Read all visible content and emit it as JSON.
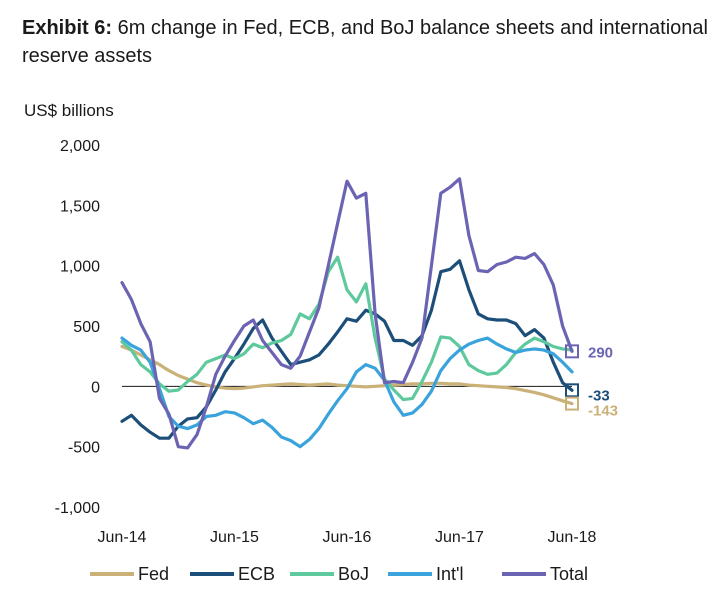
{
  "header": {
    "exhibit_label": "Exhibit 6:",
    "title": "6m change in Fed, ECB, and BoJ balance sheets and international reserve assets"
  },
  "chart_data": {
    "type": "line",
    "ylabel": "US$ billions",
    "ylim": [
      -1000,
      2000
    ],
    "y_ticks": [
      "2,000",
      "1,500",
      "1,000",
      "500",
      "0",
      "-500",
      "-1,000"
    ],
    "y_tick_values": [
      2000,
      1500,
      1000,
      500,
      0,
      -500,
      -1000
    ],
    "x_tick_labels": [
      "Jun-14",
      "Jun-15",
      "Jun-16",
      "Jun-17",
      "Jun-18"
    ],
    "x_tick_values": [
      0,
      12,
      24,
      36,
      48
    ],
    "xlim": [
      0,
      48
    ],
    "grid": false,
    "legend_position": "bottom",
    "series": [
      {
        "name": "Fed",
        "color": "#c9b178",
        "values": [
          [
            0,
            330
          ],
          [
            1,
            300
          ],
          [
            2,
            260
          ],
          [
            3,
            220
          ],
          [
            4,
            180
          ],
          [
            5,
            130
          ],
          [
            6,
            90
          ],
          [
            7,
            60
          ],
          [
            8,
            30
          ],
          [
            9,
            10
          ],
          [
            10,
            -5
          ],
          [
            11,
            -15
          ],
          [
            12,
            -20
          ],
          [
            13,
            -15
          ],
          [
            14,
            -5
          ],
          [
            15,
            5
          ],
          [
            16,
            10
          ],
          [
            17,
            15
          ],
          [
            18,
            20
          ],
          [
            19,
            15
          ],
          [
            20,
            10
          ],
          [
            21,
            15
          ],
          [
            22,
            20
          ],
          [
            23,
            10
          ],
          [
            24,
            5
          ],
          [
            25,
            0
          ],
          [
            26,
            -5
          ],
          [
            27,
            0
          ],
          [
            28,
            5
          ],
          [
            29,
            10
          ],
          [
            30,
            15
          ],
          [
            31,
            20
          ],
          [
            32,
            20
          ],
          [
            33,
            25
          ],
          [
            34,
            25
          ],
          [
            35,
            20
          ],
          [
            36,
            20
          ],
          [
            37,
            10
          ],
          [
            38,
            5
          ],
          [
            39,
            0
          ],
          [
            40,
            -5
          ],
          [
            41,
            -10
          ],
          [
            42,
            -20
          ],
          [
            43,
            -35
          ],
          [
            44,
            -50
          ],
          [
            45,
            -70
          ],
          [
            46,
            -95
          ],
          [
            47,
            -120
          ],
          [
            48,
            -143
          ]
        ]
      },
      {
        "name": "ECB",
        "color": "#1c4e7a",
        "values": [
          [
            0,
            -290
          ],
          [
            1,
            -240
          ],
          [
            2,
            -320
          ],
          [
            3,
            -380
          ],
          [
            4,
            -430
          ],
          [
            5,
            -430
          ],
          [
            6,
            -330
          ],
          [
            7,
            -270
          ],
          [
            8,
            -260
          ],
          [
            9,
            -170
          ],
          [
            10,
            -30
          ],
          [
            11,
            120
          ],
          [
            12,
            230
          ],
          [
            13,
            350
          ],
          [
            14,
            480
          ],
          [
            15,
            550
          ],
          [
            16,
            400
          ],
          [
            17,
            290
          ],
          [
            18,
            180
          ],
          [
            19,
            200
          ],
          [
            20,
            220
          ],
          [
            21,
            260
          ],
          [
            22,
            350
          ],
          [
            23,
            450
          ],
          [
            24,
            560
          ],
          [
            25,
            540
          ],
          [
            26,
            630
          ],
          [
            27,
            600
          ],
          [
            28,
            540
          ],
          [
            29,
            380
          ],
          [
            30,
            380
          ],
          [
            31,
            340
          ],
          [
            32,
            420
          ],
          [
            33,
            630
          ],
          [
            34,
            950
          ],
          [
            35,
            970
          ],
          [
            36,
            1040
          ],
          [
            37,
            800
          ],
          [
            38,
            600
          ],
          [
            39,
            560
          ],
          [
            40,
            550
          ],
          [
            41,
            550
          ],
          [
            42,
            520
          ],
          [
            43,
            420
          ],
          [
            44,
            470
          ],
          [
            45,
            400
          ],
          [
            46,
            200
          ],
          [
            47,
            30
          ],
          [
            48,
            -33
          ]
        ]
      },
      {
        "name": "BoJ",
        "color": "#5ec99d",
        "values": [
          [
            0,
            370
          ],
          [
            1,
            300
          ],
          [
            2,
            180
          ],
          [
            3,
            120
          ],
          [
            4,
            20
          ],
          [
            5,
            -40
          ],
          [
            6,
            -30
          ],
          [
            7,
            40
          ],
          [
            8,
            100
          ],
          [
            9,
            200
          ],
          [
            10,
            230
          ],
          [
            11,
            260
          ],
          [
            12,
            230
          ],
          [
            13,
            270
          ],
          [
            14,
            350
          ],
          [
            15,
            320
          ],
          [
            16,
            360
          ],
          [
            17,
            380
          ],
          [
            18,
            430
          ],
          [
            19,
            600
          ],
          [
            20,
            560
          ],
          [
            21,
            680
          ],
          [
            22,
            950
          ],
          [
            23,
            1070
          ],
          [
            24,
            800
          ],
          [
            25,
            700
          ],
          [
            26,
            850
          ],
          [
            27,
            400
          ],
          [
            28,
            60
          ],
          [
            29,
            -30
          ],
          [
            30,
            -110
          ],
          [
            31,
            -100
          ],
          [
            32,
            40
          ],
          [
            33,
            200
          ],
          [
            34,
            410
          ],
          [
            35,
            400
          ],
          [
            36,
            330
          ],
          [
            37,
            180
          ],
          [
            38,
            130
          ],
          [
            39,
            100
          ],
          [
            40,
            110
          ],
          [
            41,
            180
          ],
          [
            42,
            280
          ],
          [
            43,
            350
          ],
          [
            44,
            400
          ],
          [
            45,
            370
          ],
          [
            46,
            330
          ],
          [
            47,
            310
          ],
          [
            48,
            300
          ]
        ]
      },
      {
        "name": "Int'l",
        "color": "#3aa3dc",
        "values": [
          [
            0,
            400
          ],
          [
            1,
            340
          ],
          [
            2,
            300
          ],
          [
            3,
            200
          ],
          [
            4,
            -20
          ],
          [
            5,
            -250
          ],
          [
            6,
            -330
          ],
          [
            7,
            -350
          ],
          [
            8,
            -320
          ],
          [
            9,
            -250
          ],
          [
            10,
            -240
          ],
          [
            11,
            -210
          ],
          [
            12,
            -220
          ],
          [
            13,
            -260
          ],
          [
            14,
            -310
          ],
          [
            15,
            -280
          ],
          [
            16,
            -340
          ],
          [
            17,
            -420
          ],
          [
            18,
            -450
          ],
          [
            19,
            -500
          ],
          [
            20,
            -440
          ],
          [
            21,
            -350
          ],
          [
            22,
            -230
          ],
          [
            23,
            -120
          ],
          [
            24,
            -20
          ],
          [
            25,
            120
          ],
          [
            26,
            180
          ],
          [
            27,
            150
          ],
          [
            28,
            50
          ],
          [
            29,
            -130
          ],
          [
            30,
            -240
          ],
          [
            31,
            -220
          ],
          [
            32,
            -150
          ],
          [
            33,
            -40
          ],
          [
            34,
            130
          ],
          [
            35,
            230
          ],
          [
            36,
            300
          ],
          [
            37,
            350
          ],
          [
            38,
            380
          ],
          [
            39,
            400
          ],
          [
            40,
            350
          ],
          [
            41,
            310
          ],
          [
            42,
            280
          ],
          [
            43,
            300
          ],
          [
            44,
            310
          ],
          [
            45,
            300
          ],
          [
            46,
            270
          ],
          [
            47,
            200
          ],
          [
            48,
            120
          ]
        ]
      },
      {
        "name": "Total",
        "color": "#6b64b3",
        "values": [
          [
            0,
            860
          ],
          [
            1,
            720
          ],
          [
            2,
            520
          ],
          [
            3,
            370
          ],
          [
            4,
            -100
          ],
          [
            5,
            -230
          ],
          [
            6,
            -500
          ],
          [
            7,
            -510
          ],
          [
            8,
            -400
          ],
          [
            9,
            -170
          ],
          [
            10,
            100
          ],
          [
            11,
            250
          ],
          [
            12,
            380
          ],
          [
            13,
            500
          ],
          [
            14,
            550
          ],
          [
            15,
            380
          ],
          [
            16,
            280
          ],
          [
            17,
            180
          ],
          [
            18,
            150
          ],
          [
            19,
            250
          ],
          [
            20,
            450
          ],
          [
            21,
            650
          ],
          [
            22,
            1000
          ],
          [
            23,
            1350
          ],
          [
            24,
            1700
          ],
          [
            25,
            1560
          ],
          [
            26,
            1600
          ],
          [
            27,
            600
          ],
          [
            28,
            30
          ],
          [
            29,
            40
          ],
          [
            30,
            30
          ],
          [
            31,
            200
          ],
          [
            32,
            400
          ],
          [
            33,
            1000
          ],
          [
            34,
            1600
          ],
          [
            35,
            1650
          ],
          [
            36,
            1720
          ],
          [
            37,
            1250
          ],
          [
            38,
            960
          ],
          [
            39,
            950
          ],
          [
            40,
            1010
          ],
          [
            41,
            1030
          ],
          [
            42,
            1070
          ],
          [
            43,
            1060
          ],
          [
            44,
            1100
          ],
          [
            45,
            1010
          ],
          [
            46,
            840
          ],
          [
            47,
            500
          ],
          [
            48,
            290
          ]
        ]
      }
    ],
    "end_labels": [
      {
        "series": "Total",
        "text": "290",
        "value": 290
      },
      {
        "series": "ECB",
        "text": "-33",
        "value": -33
      },
      {
        "series": "Fed",
        "text": "-143",
        "value": -143
      }
    ]
  }
}
